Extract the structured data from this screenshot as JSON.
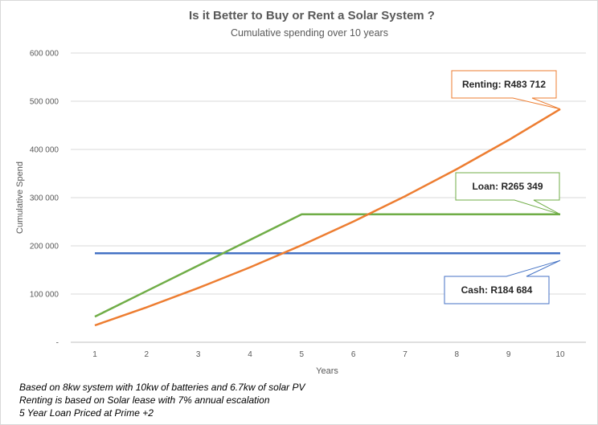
{
  "chart_data": {
    "type": "line",
    "title": "Is it Better to Buy or Rent a Solar System ?",
    "subtitle": "Cumulative spending over 10 years",
    "xlabel": "Years",
    "ylabel": "Cumulative Spend",
    "x": [
      1,
      2,
      3,
      4,
      5,
      6,
      7,
      8,
      9,
      10
    ],
    "ylim": [
      0,
      600000
    ],
    "yticks": [
      0,
      100000,
      200000,
      300000,
      400000,
      500000,
      600000
    ],
    "ytick_labels": [
      "-",
      "100 000",
      "200 000",
      "300 000",
      "400 000",
      "500 000",
      "600 000"
    ],
    "grid": true,
    "legend": "none",
    "series": [
      {
        "key": "renting",
        "color": "#ED7D31",
        "values": [
          35010,
          72471,
          112554,
          155443,
          201332,
          250433,
          302969,
          359182,
          419330,
          483712
        ]
      },
      {
        "key": "loan",
        "color": "#70AD47",
        "values": [
          53070,
          106140,
          159209,
          212279,
          265349,
          265349,
          265349,
          265349,
          265349,
          265349
        ]
      },
      {
        "key": "cash",
        "color": "#4472C4",
        "values": [
          184684,
          184684,
          184684,
          184684,
          184684,
          184684,
          184684,
          184684,
          184684,
          184684
        ]
      }
    ],
    "annotations": [
      {
        "series": "renting",
        "text": "Renting: R483 712"
      },
      {
        "series": "loan",
        "text": "Loan: R265 349"
      },
      {
        "series": "cash",
        "text": "Cash: R184 684"
      }
    ]
  },
  "notes": [
    "Based on 8kw system with 10kw of batteries and 6.7kw of solar PV",
    "Renting is based on Solar lease with 7% annual escalation",
    "5 Year Loan Priced at Prime +2"
  ]
}
